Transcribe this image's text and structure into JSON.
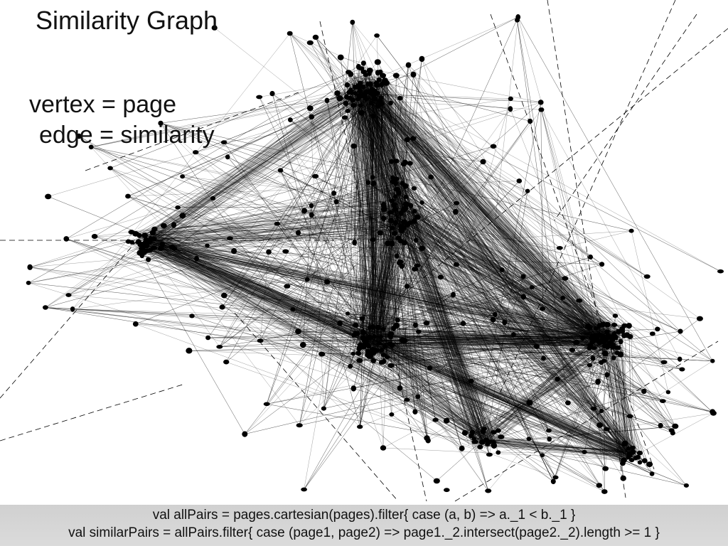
{
  "slide": {
    "title": "Similarity Graph",
    "legend": {
      "vertex_line": "vertex = page",
      "edge_line": "edge = similarity"
    },
    "code": {
      "line1": "val allPairs = pages.cartesian(pages).filter{ case (a, b) => a._1 < b._1 }",
      "line2": "val similarPairs = allPairs.filter{ case (page1, page2) => page1._2.intersect(page2._2).length >= 1 }"
    }
  },
  "graph": {
    "node_color": "#000000",
    "edge_color": "#000000",
    "background_color": "#ffffff"
  }
}
